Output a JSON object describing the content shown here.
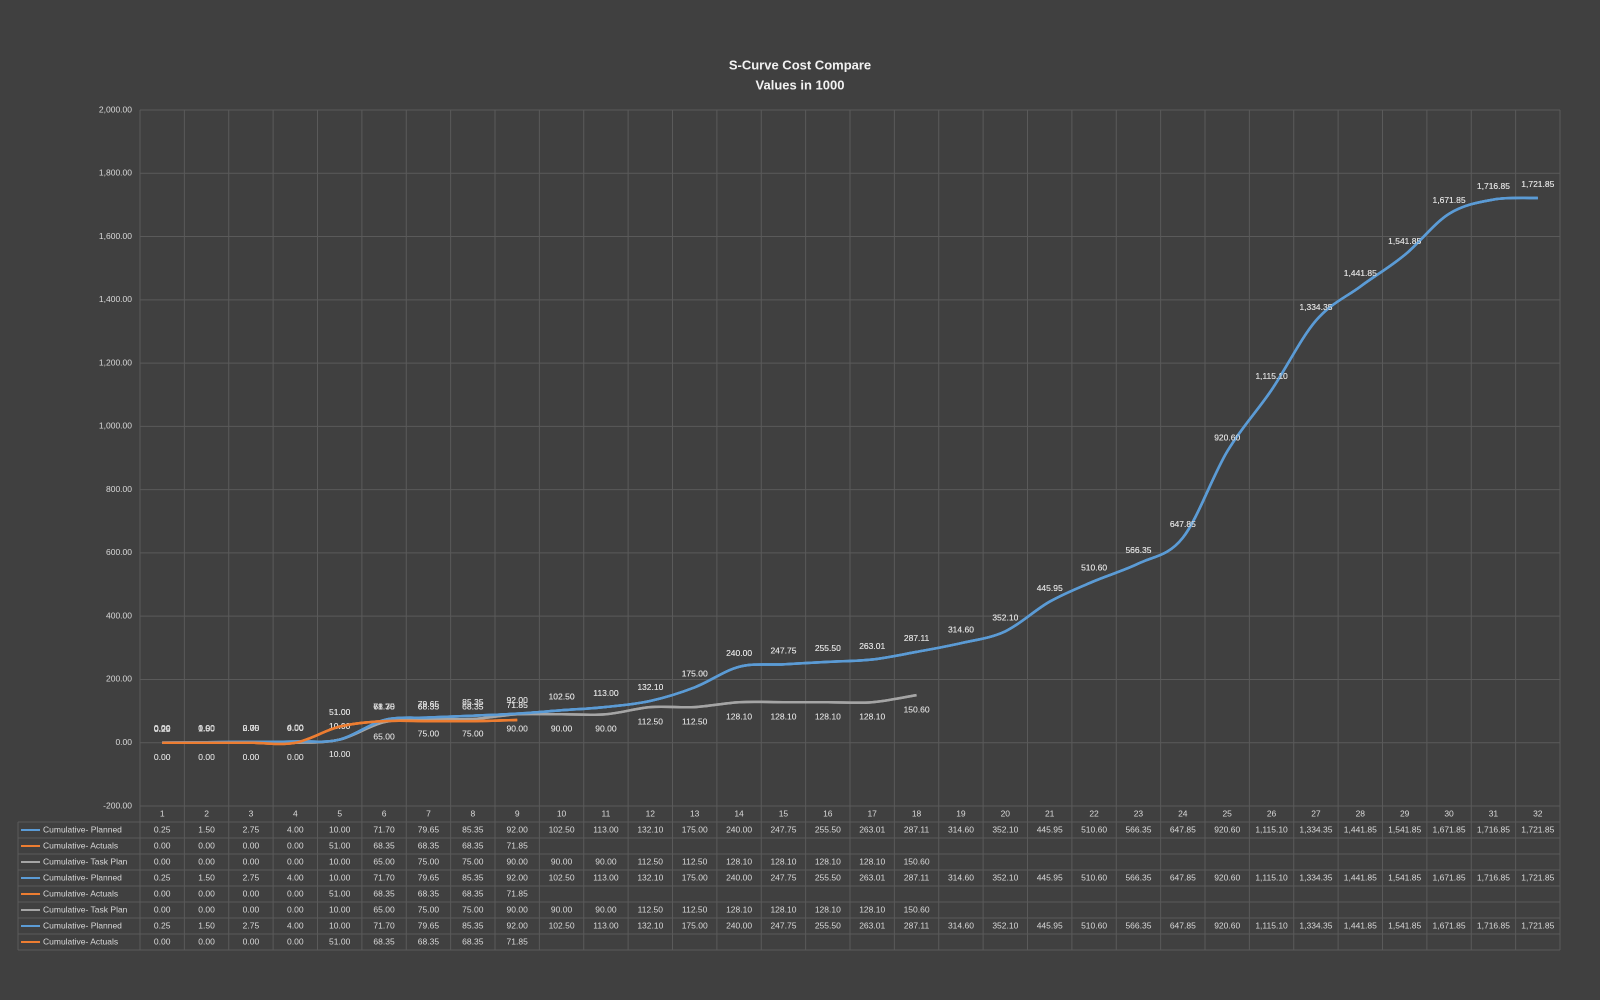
{
  "chart_data": {
    "type": "line",
    "title": "S-Curve Cost Compare",
    "subtitle": "Values in 1000",
    "categories": [
      "1",
      "2",
      "3",
      "4",
      "5",
      "6",
      "7",
      "8",
      "9",
      "10",
      "11",
      "12",
      "13",
      "14",
      "15",
      "16",
      "17",
      "18",
      "19",
      "20",
      "21",
      "22",
      "23",
      "24",
      "25",
      "26",
      "27",
      "28",
      "29",
      "30",
      "31",
      "32"
    ],
    "ylim": [
      -200,
      2000
    ],
    "yticks": [
      {
        "value": -200,
        "label": "-200.00"
      },
      {
        "value": 0,
        "label": "0.00"
      },
      {
        "value": 200,
        "label": "200.00"
      },
      {
        "value": 400,
        "label": "400.00"
      },
      {
        "value": 600,
        "label": "600.00"
      },
      {
        "value": 800,
        "label": "800.00"
      },
      {
        "value": 1000,
        "label": "1,000.00"
      },
      {
        "value": 1200,
        "label": "1,200.00"
      },
      {
        "value": 1400,
        "label": "1,400.00"
      },
      {
        "value": 1600,
        "label": "1,600.00"
      },
      {
        "value": 1800,
        "label": "1,800.00"
      },
      {
        "value": 2000,
        "label": "2,000.00"
      }
    ],
    "grid": true,
    "series": [
      {
        "name": "Cumulative- Planned",
        "color": "#5b9bd5",
        "values": [
          0.25,
          1.5,
          2.75,
          4,
          10,
          71.7,
          79.65,
          85.35,
          92,
          102.5,
          113,
          132.1,
          175,
          240,
          247.75,
          255.5,
          263.01,
          287.11,
          314.6,
          352.1,
          445.95,
          510.6,
          566.35,
          647.85,
          920.6,
          1115.1,
          1334.35,
          1441.85,
          1541.85,
          1671.85,
          1716.85,
          1721.85
        ],
        "value_labels": [
          "0.25",
          "1.50",
          "2.75",
          "4.00",
          "10.00",
          "71.70",
          "79.65",
          "85.35",
          "92.00",
          "102.50",
          "113.00",
          "132.10",
          "175.00",
          "240.00",
          "247.75",
          "255.50",
          "263.01",
          "287.11",
          "314.60",
          "352.10",
          "445.95",
          "510.60",
          "566.35",
          "647.85",
          "920.60",
          "1,115.10",
          "1,334.35",
          "1,441.85",
          "1,541.85",
          "1,671.85",
          "1,716.85",
          "1,721.85"
        ]
      },
      {
        "name": "Cumulative- Actuals",
        "color": "#ed7d31",
        "values": [
          0,
          0,
          0,
          0,
          51,
          68.35,
          68.35,
          68.35,
          71.85,
          null,
          null,
          null,
          null,
          null,
          null,
          null,
          null,
          null,
          null,
          null,
          null,
          null,
          null,
          null,
          null,
          null,
          null,
          null,
          null,
          null,
          null,
          null
        ],
        "value_labels": [
          "0.00",
          "0.00",
          "0.00",
          "0.00",
          "51.00",
          "68.35",
          "68.35",
          "68.35",
          "71.85",
          null,
          null,
          null,
          null,
          null,
          null,
          null,
          null,
          null,
          null,
          null,
          null,
          null,
          null,
          null,
          null,
          null,
          null,
          null,
          null,
          null,
          null,
          null
        ]
      },
      {
        "name": "Cumulative- Task Plan",
        "color": "#a5a5a5",
        "values": [
          0,
          0,
          0,
          0,
          10,
          65,
          75,
          75,
          90,
          90,
          90,
          112.5,
          112.5,
          128.1,
          128.1,
          128.1,
          128.1,
          150.6,
          null,
          null,
          null,
          null,
          null,
          null,
          null,
          null,
          null,
          null,
          null,
          null,
          null,
          null
        ],
        "value_labels": [
          "0.00",
          "0.00",
          "0.00",
          "0.00",
          "10.00",
          "65.00",
          "75.00",
          "75.00",
          "90.00",
          "90.00",
          "90.00",
          "112.50",
          "112.50",
          "128.10",
          "128.10",
          "128.10",
          "128.10",
          "150.60",
          null,
          null,
          null,
          null,
          null,
          null,
          null,
          null,
          null,
          null,
          null,
          null,
          null,
          null
        ]
      },
      {
        "name": "Cumulative- Planned",
        "color": "#5b9bd5",
        "values": [
          0.25,
          1.5,
          2.75,
          4,
          10,
          71.7,
          79.65,
          85.35,
          92,
          102.5,
          113,
          132.1,
          175,
          240,
          247.75,
          255.5,
          263.01,
          287.11,
          314.6,
          352.1,
          445.95,
          510.6,
          566.35,
          647.85,
          920.6,
          1115.1,
          1334.35,
          1441.85,
          1541.85,
          1671.85,
          1716.85,
          1721.85
        ],
        "value_labels": [
          "0.25",
          "1.50",
          "2.75",
          "4.00",
          "10.00",
          "71.70",
          "79.65",
          "85.35",
          "92.00",
          "102.50",
          "113.00",
          "132.10",
          "175.00",
          "240.00",
          "247.75",
          "255.50",
          "263.01",
          "287.11",
          "314.60",
          "352.10",
          "445.95",
          "510.60",
          "566.35",
          "647.85",
          "920.60",
          "1,115.10",
          "1,334.35",
          "1,441.85",
          "1,541.85",
          "1,671.85",
          "1,716.85",
          "1,721.85"
        ]
      },
      {
        "name": "Cumulative- Actuals",
        "color": "#ed7d31",
        "values": [
          0,
          0,
          0,
          0,
          51,
          68.35,
          68.35,
          68.35,
          71.85,
          null,
          null,
          null,
          null,
          null,
          null,
          null,
          null,
          null,
          null,
          null,
          null,
          null,
          null,
          null,
          null,
          null,
          null,
          null,
          null,
          null,
          null,
          null
        ],
        "value_labels": [
          "0.00",
          "0.00",
          "0.00",
          "0.00",
          "51.00",
          "68.35",
          "68.35",
          "68.35",
          "71.85",
          null,
          null,
          null,
          null,
          null,
          null,
          null,
          null,
          null,
          null,
          null,
          null,
          null,
          null,
          null,
          null,
          null,
          null,
          null,
          null,
          null,
          null,
          null
        ]
      },
      {
        "name": "Cumulative- Task Plan",
        "color": "#a5a5a5",
        "values": [
          0,
          0,
          0,
          0,
          10,
          65,
          75,
          75,
          90,
          90,
          90,
          112.5,
          112.5,
          128.1,
          128.1,
          128.1,
          128.1,
          150.6,
          null,
          null,
          null,
          null,
          null,
          null,
          null,
          null,
          null,
          null,
          null,
          null,
          null,
          null
        ],
        "value_labels": [
          "0.00",
          "0.00",
          "0.00",
          "0.00",
          "10.00",
          "65.00",
          "75.00",
          "75.00",
          "90.00",
          "90.00",
          "90.00",
          "112.50",
          "112.50",
          "128.10",
          "128.10",
          "128.10",
          "128.10",
          "150.60",
          null,
          null,
          null,
          null,
          null,
          null,
          null,
          null,
          null,
          null,
          null,
          null,
          null,
          null
        ]
      },
      {
        "name": "Cumulative- Planned",
        "color": "#5b9bd5",
        "values": [
          0.25,
          1.5,
          2.75,
          4,
          10,
          71.7,
          79.65,
          85.35,
          92,
          102.5,
          113,
          132.1,
          175,
          240,
          247.75,
          255.5,
          263.01,
          287.11,
          314.6,
          352.1,
          445.95,
          510.6,
          566.35,
          647.85,
          920.6,
          1115.1,
          1334.35,
          1441.85,
          1541.85,
          1671.85,
          1716.85,
          1721.85
        ],
        "value_labels": [
          "0.25",
          "1.50",
          "2.75",
          "4.00",
          "10.00",
          "71.70",
          "79.65",
          "85.35",
          "92.00",
          "102.50",
          "113.00",
          "132.10",
          "175.00",
          "240.00",
          "247.75",
          "255.50",
          "263.01",
          "287.11",
          "314.60",
          "352.10",
          "445.95",
          "510.60",
          "566.35",
          "647.85",
          "920.60",
          "1,115.10",
          "1,334.35",
          "1,441.85",
          "1,541.85",
          "1,671.85",
          "1,716.85",
          "1,721.85"
        ]
      },
      {
        "name": "Cumulative- Actuals",
        "color": "#ed7d31",
        "values": [
          0,
          0,
          0,
          0,
          51,
          68.35,
          68.35,
          68.35,
          71.85,
          null,
          null,
          null,
          null,
          null,
          null,
          null,
          null,
          null,
          null,
          null,
          null,
          null,
          null,
          null,
          null,
          null,
          null,
          null,
          null,
          null,
          null,
          null
        ],
        "value_labels": [
          "0.00",
          "0.00",
          "0.00",
          "0.00",
          "51.00",
          "68.35",
          "68.35",
          "68.35",
          "71.85",
          null,
          null,
          null,
          null,
          null,
          null,
          null,
          null,
          null,
          null,
          null,
          null,
          null,
          null,
          null,
          null,
          null,
          null,
          null,
          null,
          null,
          null,
          null
        ]
      }
    ]
  }
}
